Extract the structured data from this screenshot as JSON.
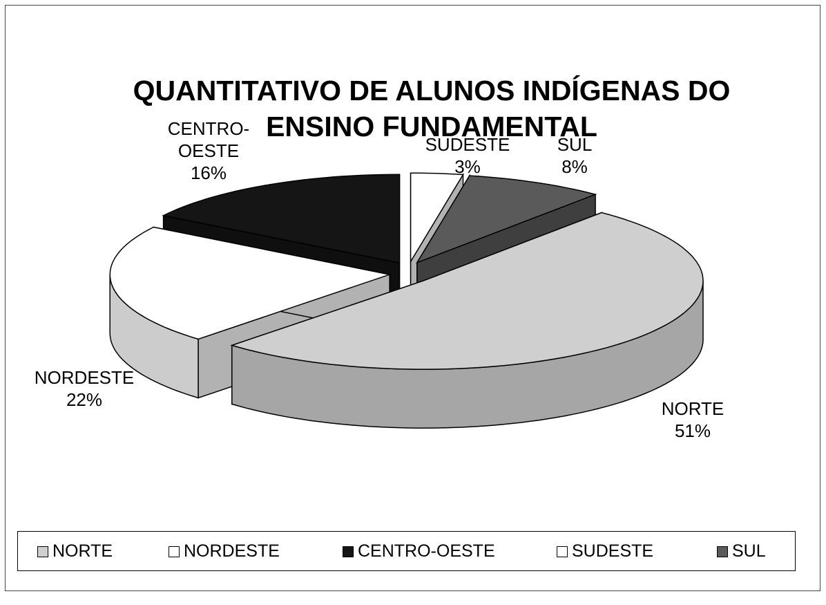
{
  "chart_data": {
    "type": "pie3d",
    "title": "QUANTITATIVO DE ALUNOS INDÍGENAS DO ENSINO FUNDAMENTAL",
    "categories": [
      "NORTE",
      "NORDESTE",
      "CENTRO-OESTE",
      "SUDESTE",
      "SUL"
    ],
    "values": [
      51,
      22,
      16,
      3,
      8
    ],
    "value_labels": [
      "51%",
      "22%",
      "16%",
      "3%",
      "8%"
    ],
    "colors": [
      "#cfcfcf",
      "#ffffff",
      "#151515",
      "#ffffff",
      "#5a5a5a"
    ],
    "legend": "bottom"
  }
}
